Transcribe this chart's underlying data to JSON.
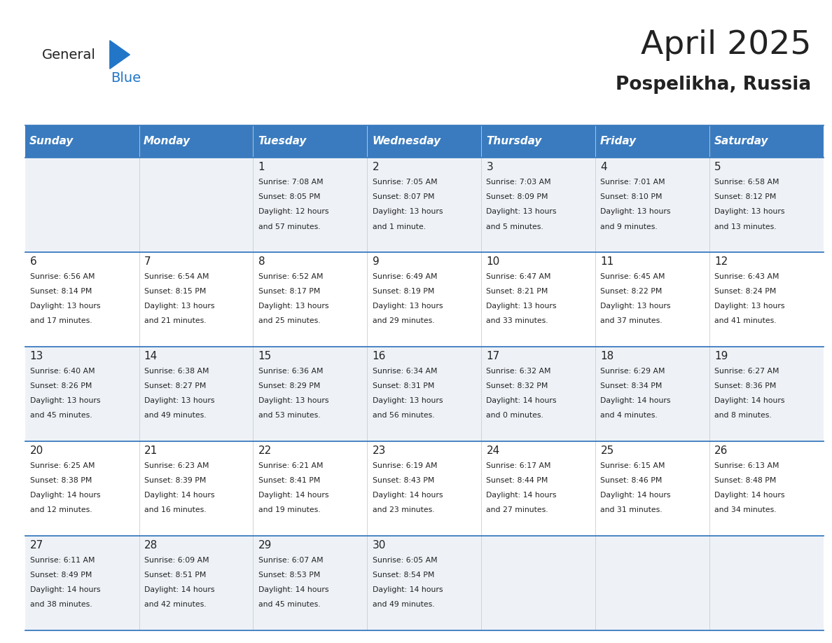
{
  "title": "April 2025",
  "subtitle": "Pospelikha, Russia",
  "days_of_week": [
    "Sunday",
    "Monday",
    "Tuesday",
    "Wednesday",
    "Thursday",
    "Friday",
    "Saturday"
  ],
  "header_bg": "#3a7bbf",
  "header_text_color": "#ffffff",
  "cell_bg_even": "#eef2f7",
  "cell_bg_odd": "#ffffff",
  "row_line_color": "#3a7bbf",
  "text_color": "#222222",
  "title_color": "#222222",
  "subtitle_color": "#222222",
  "logo_general_color": "#222222",
  "logo_blue_color": "#2176c7",
  "calendar_data": [
    [
      null,
      null,
      {
        "day": 1,
        "sunrise": "7:08 AM",
        "sunset": "8:05 PM",
        "daylight": "12 hours and 57 minutes."
      },
      {
        "day": 2,
        "sunrise": "7:05 AM",
        "sunset": "8:07 PM",
        "daylight": "13 hours and 1 minute."
      },
      {
        "day": 3,
        "sunrise": "7:03 AM",
        "sunset": "8:09 PM",
        "daylight": "13 hours and 5 minutes."
      },
      {
        "day": 4,
        "sunrise": "7:01 AM",
        "sunset": "8:10 PM",
        "daylight": "13 hours and 9 minutes."
      },
      {
        "day": 5,
        "sunrise": "6:58 AM",
        "sunset": "8:12 PM",
        "daylight": "13 hours and 13 minutes."
      }
    ],
    [
      {
        "day": 6,
        "sunrise": "6:56 AM",
        "sunset": "8:14 PM",
        "daylight": "13 hours and 17 minutes."
      },
      {
        "day": 7,
        "sunrise": "6:54 AM",
        "sunset": "8:15 PM",
        "daylight": "13 hours and 21 minutes."
      },
      {
        "day": 8,
        "sunrise": "6:52 AM",
        "sunset": "8:17 PM",
        "daylight": "13 hours and 25 minutes."
      },
      {
        "day": 9,
        "sunrise": "6:49 AM",
        "sunset": "8:19 PM",
        "daylight": "13 hours and 29 minutes."
      },
      {
        "day": 10,
        "sunrise": "6:47 AM",
        "sunset": "8:21 PM",
        "daylight": "13 hours and 33 minutes."
      },
      {
        "day": 11,
        "sunrise": "6:45 AM",
        "sunset": "8:22 PM",
        "daylight": "13 hours and 37 minutes."
      },
      {
        "day": 12,
        "sunrise": "6:43 AM",
        "sunset": "8:24 PM",
        "daylight": "13 hours and 41 minutes."
      }
    ],
    [
      {
        "day": 13,
        "sunrise": "6:40 AM",
        "sunset": "8:26 PM",
        "daylight": "13 hours and 45 minutes."
      },
      {
        "day": 14,
        "sunrise": "6:38 AM",
        "sunset": "8:27 PM",
        "daylight": "13 hours and 49 minutes."
      },
      {
        "day": 15,
        "sunrise": "6:36 AM",
        "sunset": "8:29 PM",
        "daylight": "13 hours and 53 minutes."
      },
      {
        "day": 16,
        "sunrise": "6:34 AM",
        "sunset": "8:31 PM",
        "daylight": "13 hours and 56 minutes."
      },
      {
        "day": 17,
        "sunrise": "6:32 AM",
        "sunset": "8:32 PM",
        "daylight": "14 hours and 0 minutes."
      },
      {
        "day": 18,
        "sunrise": "6:29 AM",
        "sunset": "8:34 PM",
        "daylight": "14 hours and 4 minutes."
      },
      {
        "day": 19,
        "sunrise": "6:27 AM",
        "sunset": "8:36 PM",
        "daylight": "14 hours and 8 minutes."
      }
    ],
    [
      {
        "day": 20,
        "sunrise": "6:25 AM",
        "sunset": "8:38 PM",
        "daylight": "14 hours and 12 minutes."
      },
      {
        "day": 21,
        "sunrise": "6:23 AM",
        "sunset": "8:39 PM",
        "daylight": "14 hours and 16 minutes."
      },
      {
        "day": 22,
        "sunrise": "6:21 AM",
        "sunset": "8:41 PM",
        "daylight": "14 hours and 19 minutes."
      },
      {
        "day": 23,
        "sunrise": "6:19 AM",
        "sunset": "8:43 PM",
        "daylight": "14 hours and 23 minutes."
      },
      {
        "day": 24,
        "sunrise": "6:17 AM",
        "sunset": "8:44 PM",
        "daylight": "14 hours and 27 minutes."
      },
      {
        "day": 25,
        "sunrise": "6:15 AM",
        "sunset": "8:46 PM",
        "daylight": "14 hours and 31 minutes."
      },
      {
        "day": 26,
        "sunrise": "6:13 AM",
        "sunset": "8:48 PM",
        "daylight": "14 hours and 34 minutes."
      }
    ],
    [
      {
        "day": 27,
        "sunrise": "6:11 AM",
        "sunset": "8:49 PM",
        "daylight": "14 hours and 38 minutes."
      },
      {
        "day": 28,
        "sunrise": "6:09 AM",
        "sunset": "8:51 PM",
        "daylight": "14 hours and 42 minutes."
      },
      {
        "day": 29,
        "sunrise": "6:07 AM",
        "sunset": "8:53 PM",
        "daylight": "14 hours and 45 minutes."
      },
      {
        "day": 30,
        "sunrise": "6:05 AM",
        "sunset": "8:54 PM",
        "daylight": "14 hours and 49 minutes."
      },
      null,
      null,
      null
    ]
  ]
}
